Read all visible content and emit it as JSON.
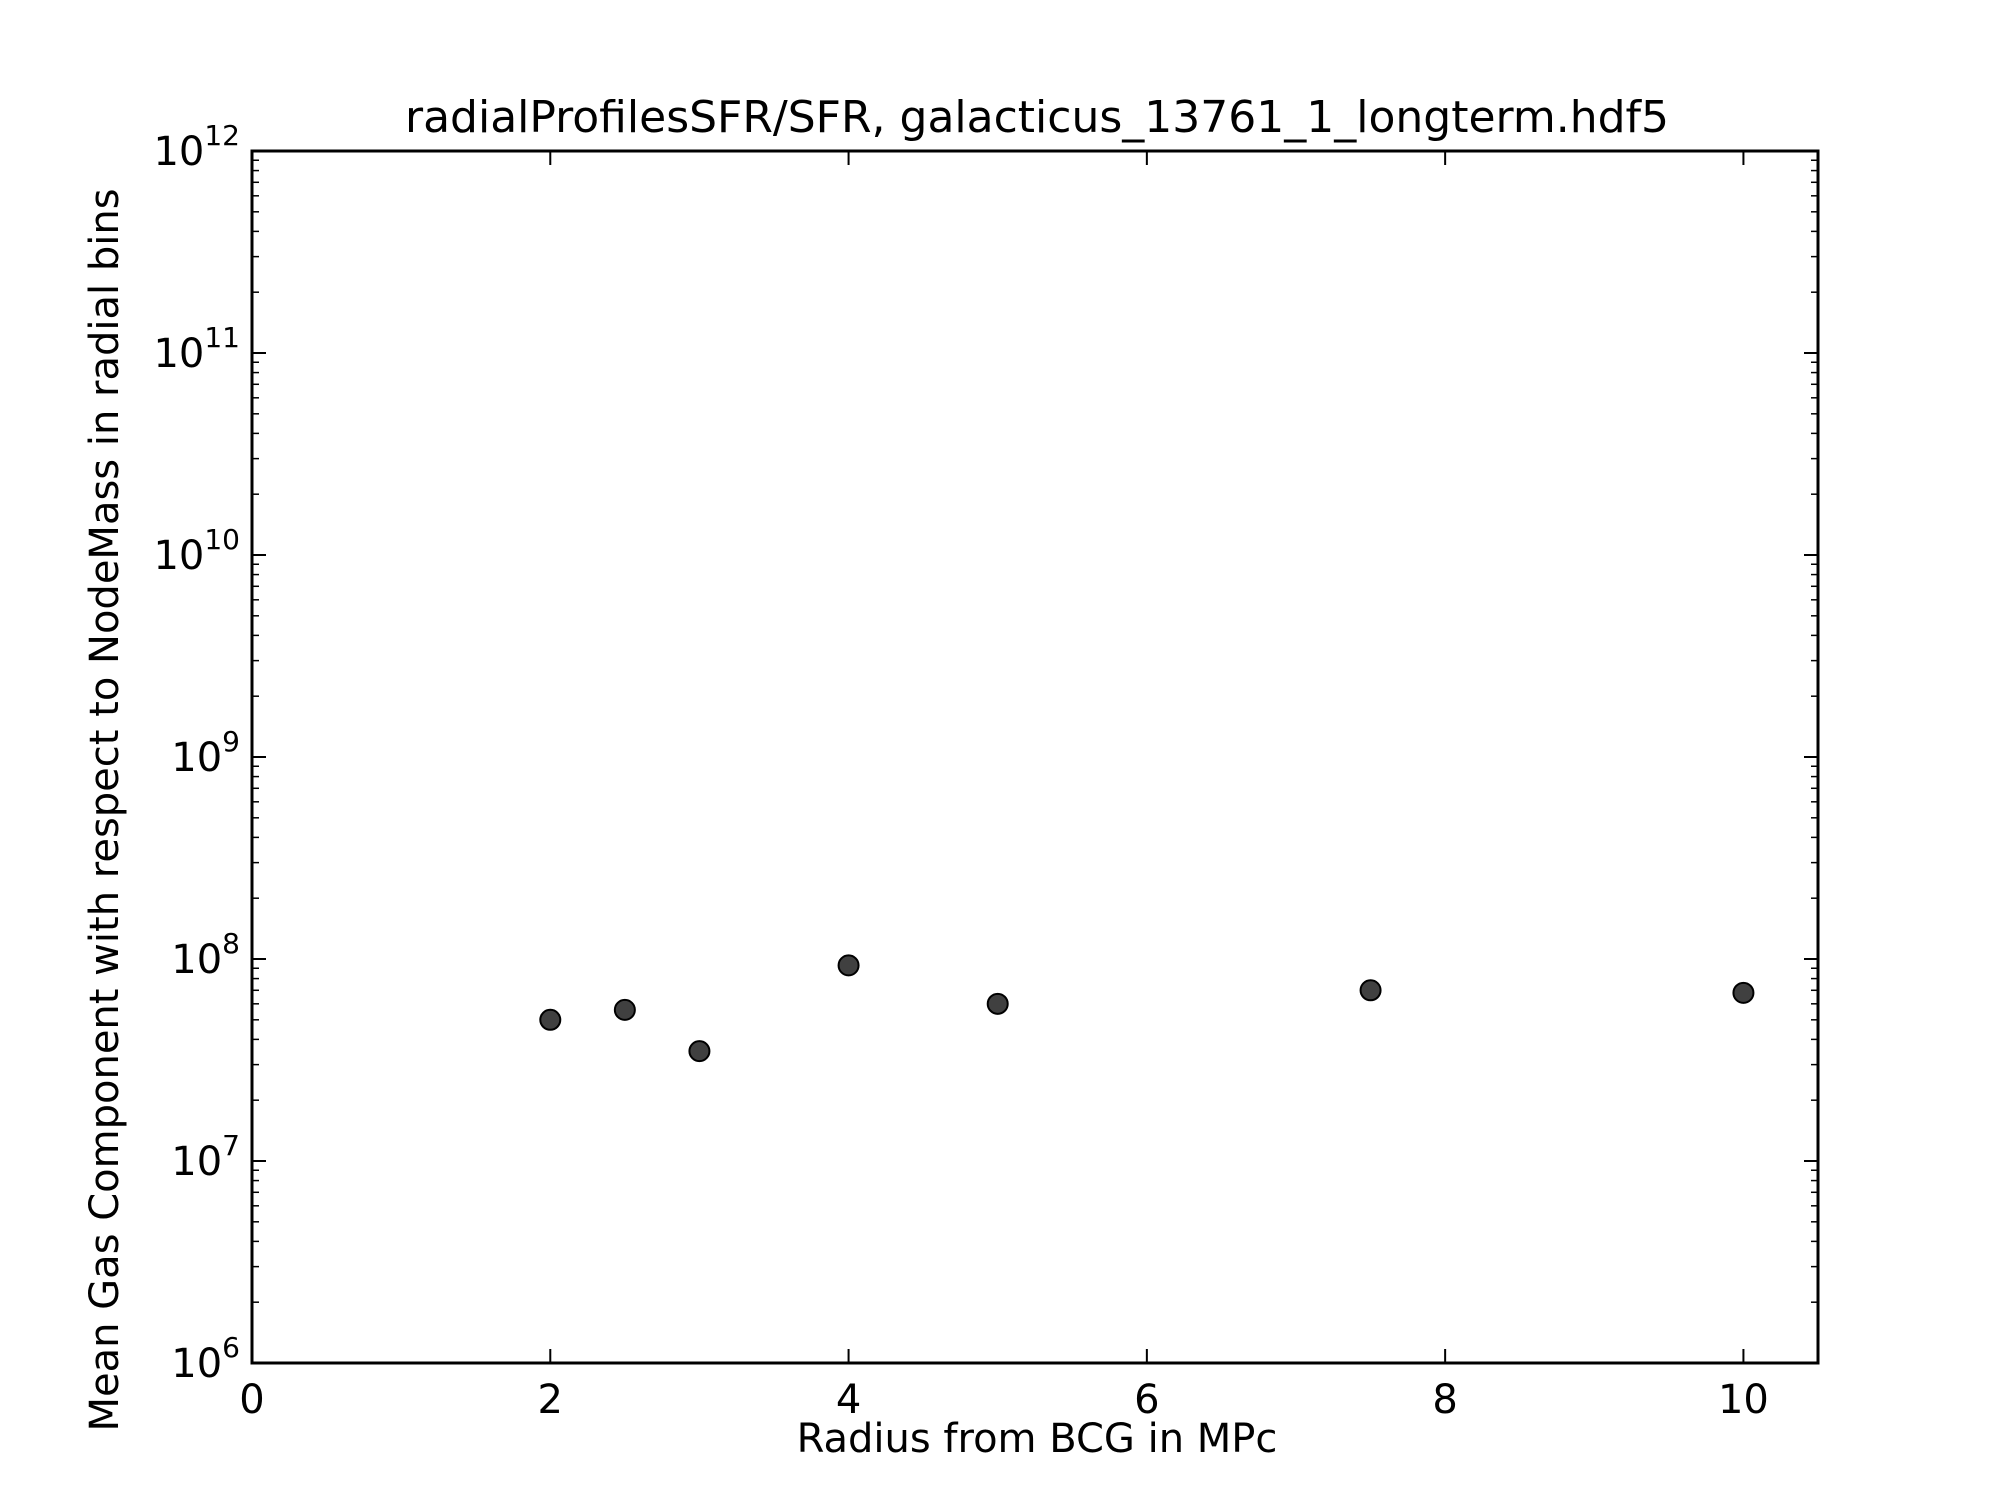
{
  "chart_data": {
    "type": "scatter",
    "title": "radialProfilesSFR/SFR, galacticus_13761_1_longterm.hdf5",
    "xlabel": "Radius from BCG in MPc",
    "ylabel": "Mean Gas Component with respect to NodeMass in radial bins",
    "xlim": [
      0,
      10.5
    ],
    "ylim": [
      1000000,
      1000000000000
    ],
    "yscale": "log",
    "x_ticks": [
      0,
      2,
      4,
      6,
      8,
      10
    ],
    "x_tick_labels": [
      "0",
      "2",
      "4",
      "6",
      "8",
      "10"
    ],
    "y_tick_exponents": [
      6,
      7,
      8,
      9,
      10,
      11,
      12
    ],
    "y_tick_base": "10",
    "grid": false,
    "marker_color": "#404040",
    "marker_edge_color": "#000000",
    "series": [
      {
        "x": [
          2,
          2.5,
          3,
          4,
          5,
          7.5,
          10
        ],
        "y": [
          50000000,
          56000000,
          35000000,
          93000000,
          60000000,
          70000000,
          68000000
        ]
      }
    ]
  }
}
